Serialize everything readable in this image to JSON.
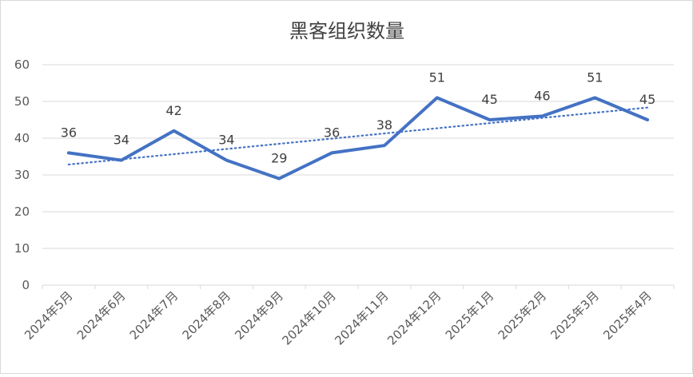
{
  "chart_data": {
    "type": "line",
    "title": "黑客组织数量",
    "categories": [
      "2024年5月",
      "2024年6月",
      "2024年7月",
      "2024年8月",
      "2024年9月",
      "2024年10月",
      "2024年11月",
      "2024年12月",
      "2025年1月",
      "2025年2月",
      "2025年3月",
      "2025年4月"
    ],
    "series": [
      {
        "values": [
          36,
          34,
          42,
          34,
          29,
          36,
          38,
          51,
          45,
          46,
          51,
          45
        ],
        "color": "#4472c4",
        "data_labels": true
      }
    ],
    "trendline": {
      "kind": "linear",
      "style": "dotted",
      "color": "#4472c4"
    },
    "ylim": [
      0,
      60
    ],
    "yticks": [
      "0",
      "10",
      "20",
      "30",
      "40",
      "50",
      "60"
    ],
    "grid": true,
    "legend": "none"
  }
}
